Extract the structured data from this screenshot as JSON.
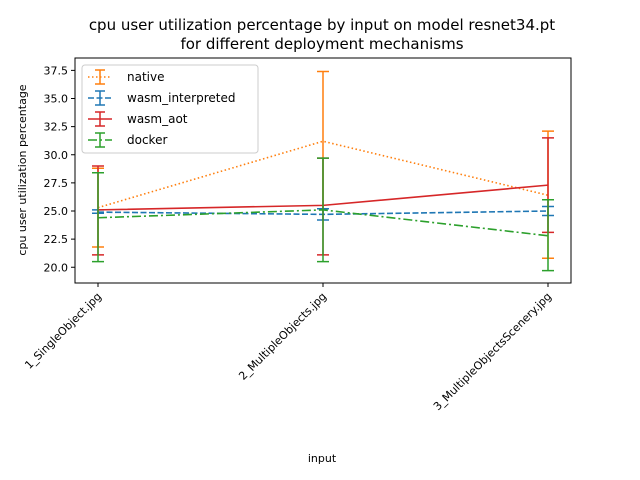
{
  "chart_data": {
    "type": "line",
    "title_line1": "cpu user utilization percentage by input on model resnet34.pt",
    "title_line2": "for different deployment mechanisms",
    "xlabel": "input",
    "ylabel": "cpu user utilization percentage",
    "categories": [
      "1_SingleObject.jpg",
      "2_MultipleObjects.jpg",
      "3_MultipleObjectsScenery.jpg"
    ],
    "ylim": [
      18.6,
      38.6
    ],
    "yticks": [
      20.0,
      22.5,
      25.0,
      27.5,
      30.0,
      32.5,
      35.0,
      37.5
    ],
    "ytick_labels": [
      "20.0",
      "22.5",
      "25.0",
      "27.5",
      "30.0",
      "32.5",
      "35.0",
      "37.5"
    ],
    "grid": false,
    "legend_position": "top-left",
    "series": [
      {
        "name": "native",
        "color": "#ff7f0e",
        "dash": "dotted",
        "values": [
          25.3,
          31.2,
          26.4
        ],
        "err_low": [
          21.8,
          25.2,
          20.8
        ],
        "err_high": [
          28.8,
          37.4,
          32.1
        ]
      },
      {
        "name": "wasm_interpreted",
        "color": "#1f77b4",
        "dash": "dashed",
        "values": [
          24.9,
          24.7,
          25.0
        ],
        "err_low": [
          24.8,
          24.2,
          24.6
        ],
        "err_high": [
          25.1,
          25.2,
          25.4
        ]
      },
      {
        "name": "wasm_aot",
        "color": "#d62728",
        "dash": "solid",
        "values": [
          25.1,
          25.5,
          27.3
        ],
        "err_low": [
          21.1,
          21.1,
          23.1
        ],
        "err_high": [
          29.0,
          29.7,
          31.5
        ]
      },
      {
        "name": "docker",
        "color": "#2ca02c",
        "dash": "dashdot",
        "values": [
          24.4,
          25.1,
          22.8
        ],
        "err_low": [
          20.5,
          20.5,
          19.7
        ],
        "err_high": [
          28.4,
          29.7,
          26.0
        ]
      }
    ]
  }
}
